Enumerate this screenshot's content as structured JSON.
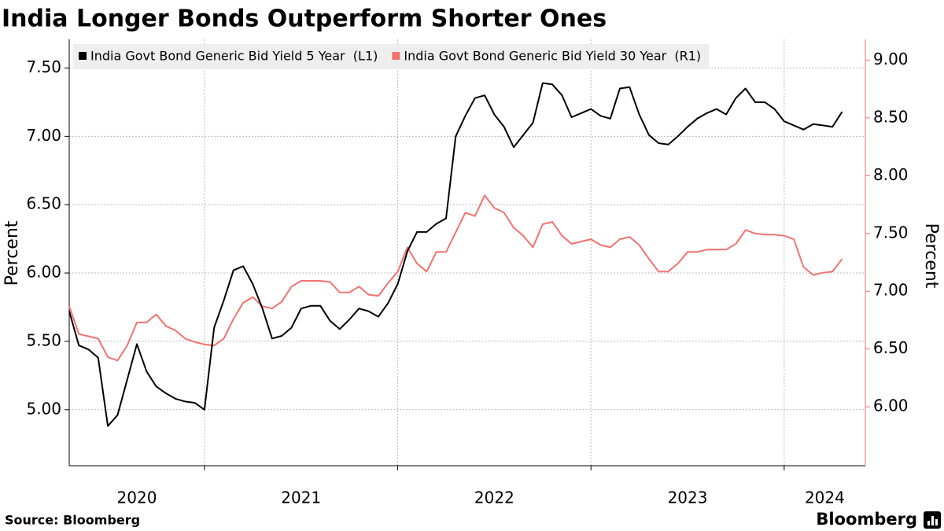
{
  "chart_data": {
    "type": "line",
    "title": "India Longer Bonds Outperform Shorter Ones",
    "source": "Source: Bloomberg",
    "brand": "Bloomberg",
    "ylabel": "Percent",
    "y2label": "Percent",
    "categories": [
      "2020",
      "2021",
      "2022",
      "2023",
      "2024"
    ],
    "xlim": [
      2020.3,
      2024.42
    ],
    "xticks": [
      2021,
      2022,
      2023,
      2024
    ],
    "ylim": [
      4.59,
      7.71
    ],
    "yticks": [
      {
        "value": 5,
        "label": "5.00"
      },
      {
        "value": 5.5,
        "label": "5.50"
      },
      {
        "value": 6,
        "label": "6.00"
      },
      {
        "value": 6.5,
        "label": "6.50"
      },
      {
        "value": 7,
        "label": "7.00"
      },
      {
        "value": 7.5,
        "label": "7.50"
      }
    ],
    "y2lim": [
      5.49,
      9.18
    ],
    "y2ticks": [
      {
        "value": 6,
        "label": "6.00"
      },
      {
        "value": 6.5,
        "label": "6.50"
      },
      {
        "value": 7,
        "label": "7.00"
      },
      {
        "value": 7.5,
        "label": "7.50"
      },
      {
        "value": 8,
        "label": "8.00"
      },
      {
        "value": 8.5,
        "label": "8.50"
      },
      {
        "value": 9,
        "label": "9.00"
      }
    ],
    "grid": true,
    "legend": "top-left",
    "x": [
      2020.3,
      2020.35,
      2020.4,
      2020.45,
      2020.5,
      2020.55,
      2020.6,
      2020.65,
      2020.7,
      2020.75,
      2020.8,
      2020.85,
      2020.9,
      2020.95,
      2021.0,
      2021.05,
      2021.1,
      2021.15,
      2021.2,
      2021.25,
      2021.3,
      2021.35,
      2021.4,
      2021.45,
      2021.5,
      2021.55,
      2021.6,
      2021.65,
      2021.7,
      2021.75,
      2021.8,
      2021.85,
      2021.9,
      2021.95,
      2022.0,
      2022.05,
      2022.1,
      2022.15,
      2022.2,
      2022.25,
      2022.3,
      2022.35,
      2022.4,
      2022.45,
      2022.5,
      2022.55,
      2022.6,
      2022.65,
      2022.7,
      2022.75,
      2022.8,
      2022.85,
      2022.9,
      2022.95,
      2023.0,
      2023.05,
      2023.1,
      2023.15,
      2023.2,
      2023.25,
      2023.3,
      2023.35,
      2023.4,
      2023.45,
      2023.5,
      2023.55,
      2023.6,
      2023.65,
      2023.7,
      2023.75,
      2023.8,
      2023.85,
      2023.9,
      2023.95,
      2024.0,
      2024.05,
      2024.1,
      2024.15,
      2024.2,
      2024.25,
      2024.3
    ],
    "series": [
      {
        "name": "India Govt Bond Generic Bid Yield 5 Year  (L1)",
        "color": "#000000",
        "axis": "y",
        "values": [
          5.72,
          5.47,
          5.44,
          5.38,
          4.88,
          4.96,
          5.22,
          5.48,
          5.28,
          5.17,
          5.12,
          5.08,
          5.06,
          5.05,
          5.0,
          5.6,
          5.8,
          6.02,
          6.05,
          5.92,
          5.74,
          5.52,
          5.54,
          5.6,
          5.74,
          5.76,
          5.76,
          5.65,
          5.59,
          5.66,
          5.74,
          5.72,
          5.68,
          5.78,
          5.92,
          6.16,
          6.3,
          6.3,
          6.36,
          6.4,
          7.0,
          7.15,
          7.28,
          7.3,
          7.16,
          7.07,
          6.92,
          7.01,
          7.1,
          7.39,
          7.38,
          7.3,
          7.14,
          7.17,
          7.2,
          7.15,
          7.13,
          7.35,
          7.36,
          7.16,
          7.01,
          6.95,
          6.94,
          7.0,
          7.07,
          7.13,
          7.17,
          7.2,
          7.16,
          7.28,
          7.35,
          7.25,
          7.25,
          7.2,
          7.11,
          7.08,
          7.05,
          7.09,
          7.08,
          7.07,
          7.18
        ]
      },
      {
        "name": "India Govt Bond Generic Bid Yield 30 Year  (R1)",
        "color": "#f2726f",
        "axis": "y2",
        "values": [
          6.87,
          6.63,
          6.61,
          6.59,
          6.43,
          6.4,
          6.53,
          6.73,
          6.73,
          6.8,
          6.7,
          6.66,
          6.59,
          6.56,
          6.54,
          6.53,
          6.59,
          6.76,
          6.9,
          6.95,
          6.87,
          6.85,
          6.91,
          7.04,
          7.09,
          7.09,
          7.09,
          7.08,
          6.99,
          6.99,
          7.04,
          6.97,
          6.96,
          7.07,
          7.17,
          7.38,
          7.24,
          7.17,
          7.34,
          7.34,
          7.51,
          7.68,
          7.65,
          7.83,
          7.72,
          7.68,
          7.55,
          7.48,
          7.38,
          7.58,
          7.6,
          7.48,
          7.41,
          7.43,
          7.45,
          7.4,
          7.38,
          7.45,
          7.47,
          7.4,
          7.28,
          7.17,
          7.17,
          7.24,
          7.34,
          7.34,
          7.36,
          7.36,
          7.36,
          7.41,
          7.53,
          7.5,
          7.49,
          7.49,
          7.48,
          7.45,
          7.21,
          7.14,
          7.16,
          7.17,
          7.28
        ]
      }
    ]
  }
}
